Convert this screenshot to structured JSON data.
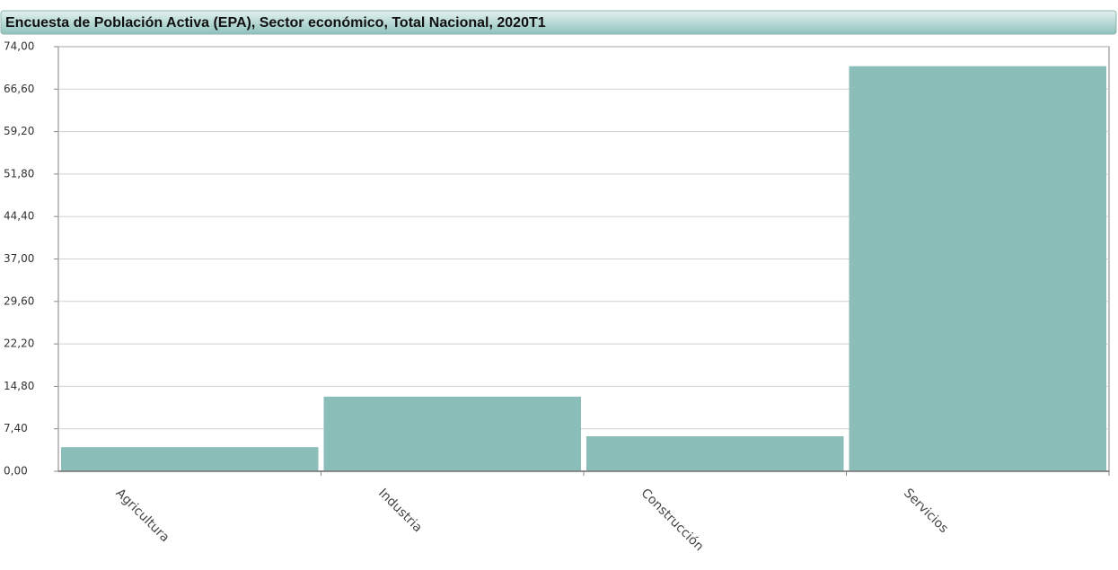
{
  "chart_data": {
    "type": "bar",
    "title": "Encuesta de Población Activa (EPA), Sector económico, Total Nacional, 2020T1",
    "categories": [
      "Agricultura",
      "Industria",
      "Construcción",
      "Servicios"
    ],
    "values": [
      4.2,
      13.0,
      6.1,
      70.6
    ],
    "color": "#8bbdb9",
    "ylim": [
      0,
      74
    ],
    "yticks": [
      {
        "value": 0,
        "label": "0,00"
      },
      {
        "value": 7.4,
        "label": "7,40"
      },
      {
        "value": 14.8,
        "label": "14,80"
      },
      {
        "value": 22.2,
        "label": "22,20"
      },
      {
        "value": 29.6,
        "label": "29,60"
      },
      {
        "value": 37,
        "label": "37,00"
      },
      {
        "value": 44.4,
        "label": "44,40"
      },
      {
        "value": 51.8,
        "label": "51,80"
      },
      {
        "value": 59.2,
        "label": "59,20"
      },
      {
        "value": 66.6,
        "label": "66,60"
      },
      {
        "value": 74,
        "label": "74,00"
      }
    ],
    "grid": true
  }
}
